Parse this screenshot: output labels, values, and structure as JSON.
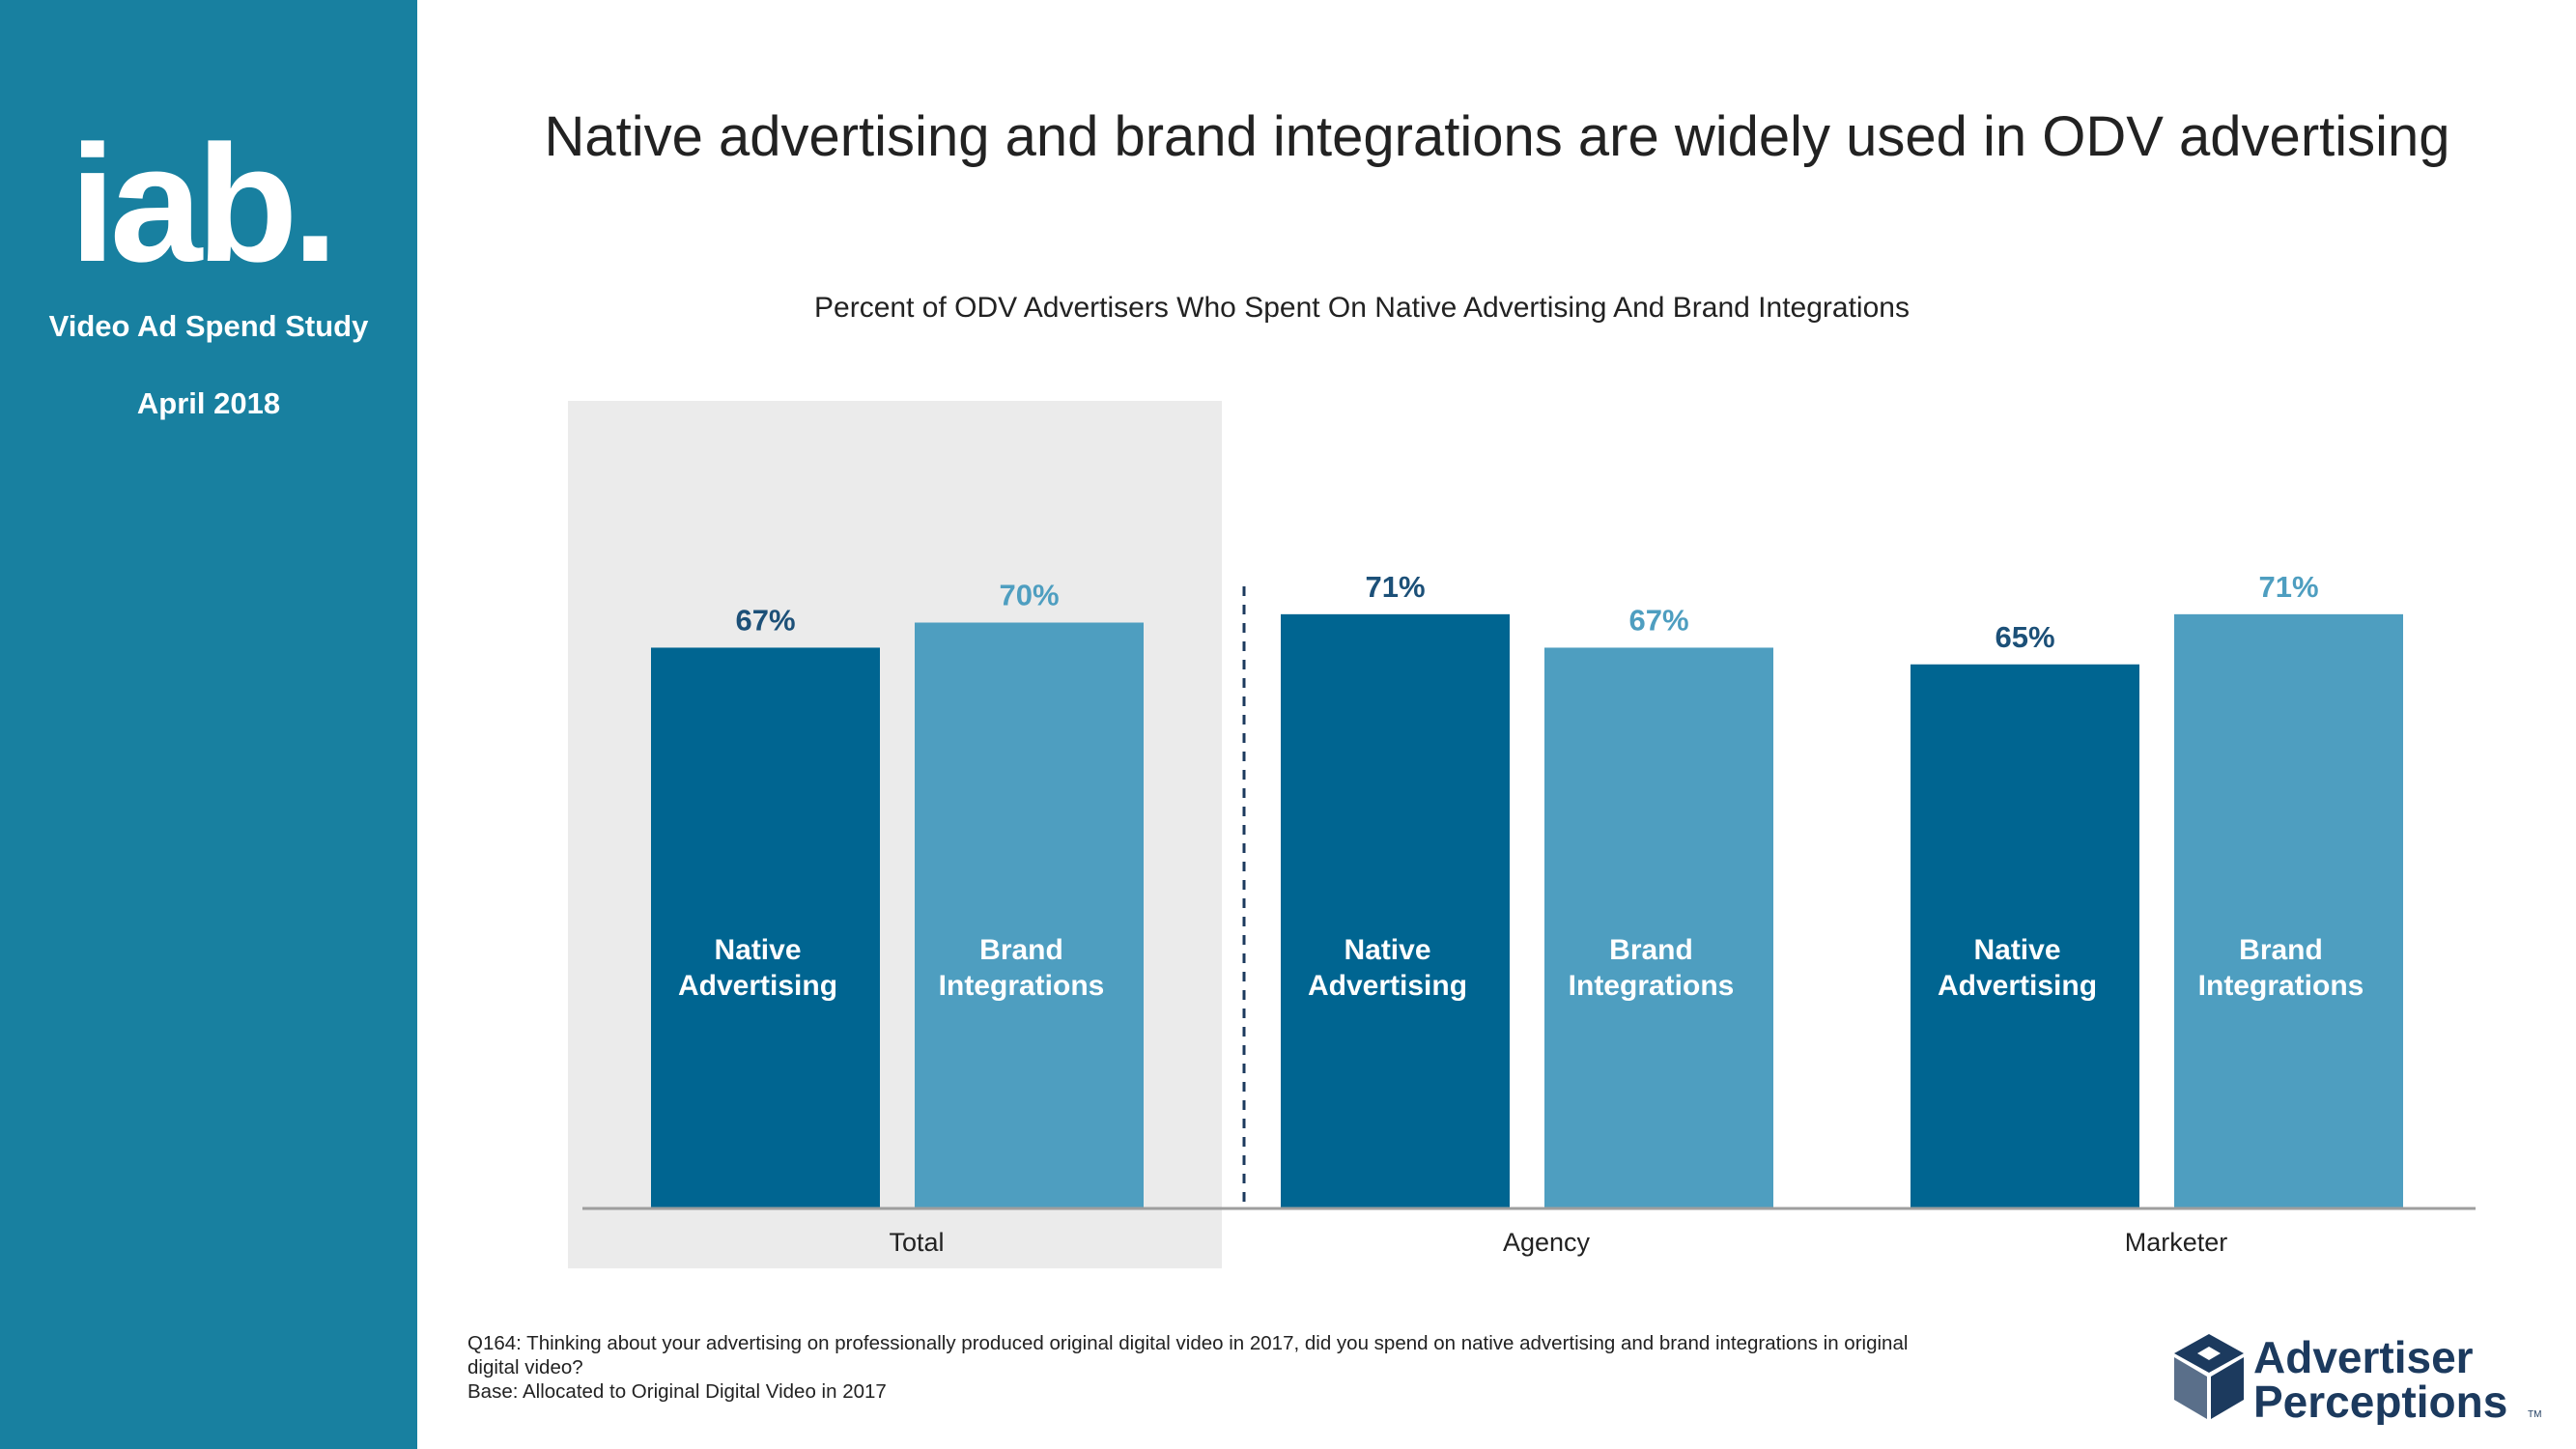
{
  "sidebar": {
    "logo_text": "iab.",
    "study": "Video Ad Spend Study",
    "date": "April 2018"
  },
  "title": "Native advertising and brand integrations are widely used in ODV advertising",
  "chart_data": {
    "type": "bar",
    "title": "Percent of ODV Advertisers Who Spent On Native Advertising And Brand Integrations",
    "categories": [
      "Total",
      "Agency",
      "Marketer"
    ],
    "series": [
      {
        "name": "Native Advertising",
        "label_lines": [
          "Native",
          "Advertising"
        ],
        "color": "#006591",
        "values": [
          67,
          71,
          65
        ],
        "labels": [
          "67%",
          "71%",
          "65%"
        ]
      },
      {
        "name": "Brand Integrations",
        "label_lines": [
          "Brand",
          "Integrations"
        ],
        "color": "#4e9ec0",
        "values": [
          70,
          67,
          71
        ],
        "labels": [
          "70%",
          "67%",
          "71%"
        ]
      }
    ],
    "ylim": [
      0,
      100
    ],
    "highlighted_category": "Total",
    "highlight_color": "#ebebeb",
    "label_colors": [
      "#1c5078",
      "#4e9ec0"
    ],
    "bar_text_color": "#ffffff",
    "axis_color": "#9e9e9e",
    "divider_color": "#1c3a5e",
    "xlabel": "",
    "ylabel": ""
  },
  "footnote": {
    "question_line1": "Q164: Thinking about your advertising on professionally produced original digital video in 2017, did you spend on native advertising and brand integrations in original",
    "question_line2": "digital video?",
    "base": "Base:  Allocated to Original Digital Video in 2017"
  },
  "brand": {
    "line1": "Advertiser",
    "line2": "Perceptions",
    "tm": "TM",
    "color": "#1c3a5e"
  },
  "colors": {
    "sidebar": "#1880a0",
    "text": "#222222"
  }
}
